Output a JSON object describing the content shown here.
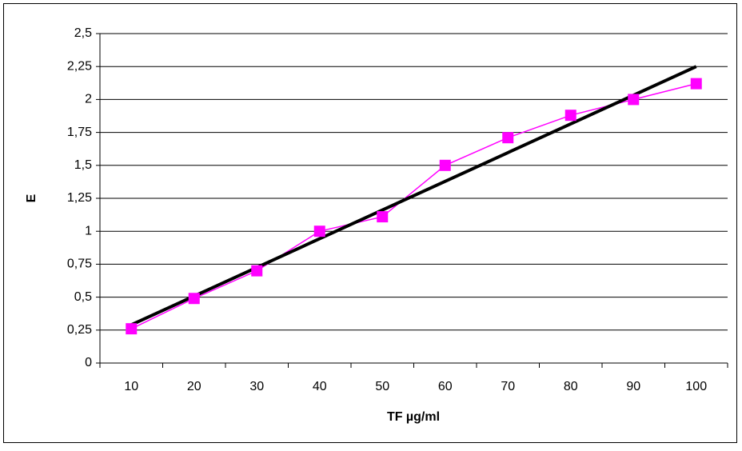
{
  "chart_data": {
    "type": "line",
    "x_label": "TF µg/ml",
    "y_label": "E",
    "categories": [
      "10",
      "20",
      "30",
      "40",
      "50",
      "60",
      "70",
      "80",
      "90",
      "100"
    ],
    "values": [
      0.26,
      0.49,
      0.7,
      1.0,
      1.11,
      1.5,
      1.71,
      1.88,
      2.0,
      2.12
    ],
    "color": "#ff00ff",
    "trendline": {
      "color": "#000000",
      "values": [
        0.29,
        2.25
      ]
    },
    "ylim": [
      0,
      2.5
    ],
    "yticks": [
      0,
      {
        "value": 0.25,
        "label": "0,25"
      },
      {
        "value": 0.5,
        "label": "0,5"
      },
      {
        "value": 0.75,
        "label": "0,75"
      },
      1,
      {
        "value": 1.25,
        "label": "1,25"
      },
      {
        "value": 1.5,
        "label": "1,5"
      },
      {
        "value": 1.75,
        "label": "1,75"
      },
      2,
      {
        "value": 2.25,
        "label": "2,25"
      },
      {
        "value": 2.5,
        "label": "2,5"
      }
    ],
    "grid": true
  }
}
